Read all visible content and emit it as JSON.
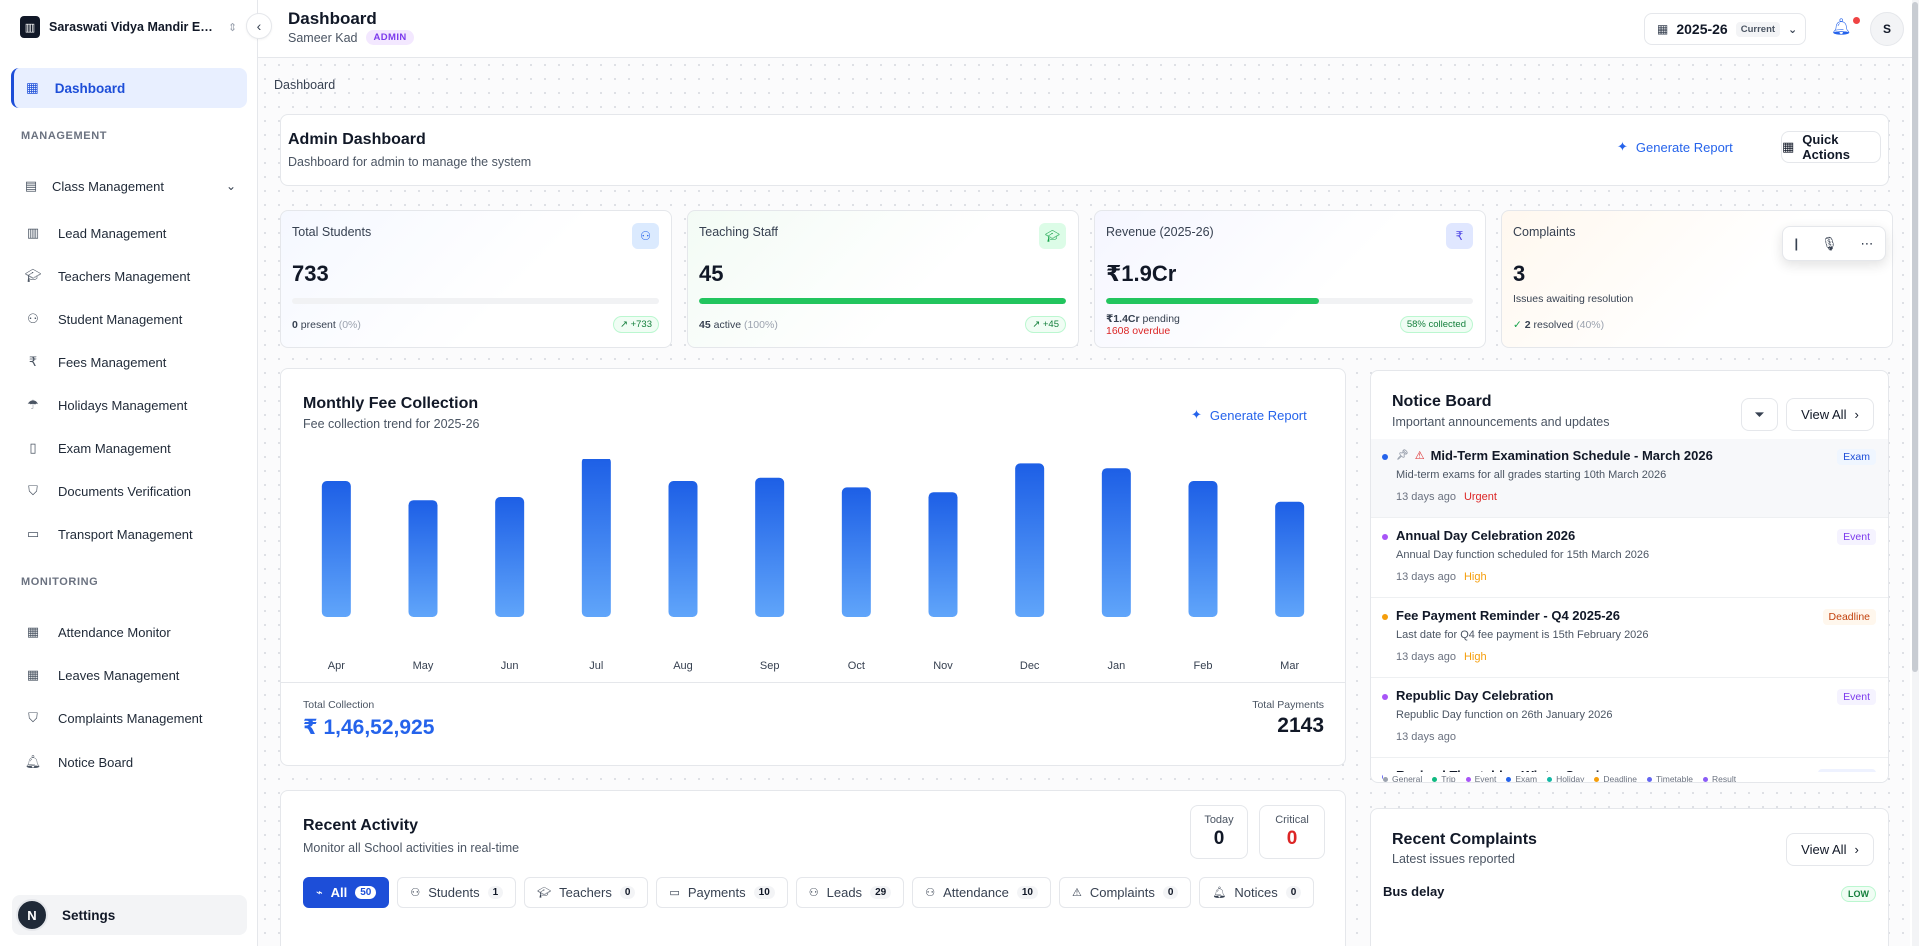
{
  "sidebar": {
    "school_name": "Saraswati Vidya Mandir Engl...",
    "dashboard_label": "Dashboard",
    "section_management": "MANAGEMENT",
    "section_monitoring": "MONITORING",
    "items": [
      {
        "label": "Class Management",
        "icon": "building-icon"
      },
      {
        "label": "Lead Management",
        "icon": "chart-icon"
      },
      {
        "label": "Teachers Management",
        "icon": "graduation-cap-icon"
      },
      {
        "label": "Student Management",
        "icon": "users-icon"
      },
      {
        "label": "Fees Management",
        "icon": "rupee-icon"
      },
      {
        "label": "Holidays Management",
        "icon": "umbrella-icon"
      },
      {
        "label": "Exam Management",
        "icon": "clipboard-icon"
      },
      {
        "label": "Documents Verification",
        "icon": "shield-icon"
      },
      {
        "label": "Transport Management",
        "icon": "bus-icon"
      },
      {
        "label": "Attendance Monitor",
        "icon": "calendar-icon"
      },
      {
        "label": "Leaves Management",
        "icon": "calendar-icon"
      },
      {
        "label": "Complaints Management",
        "icon": "shield-icon"
      },
      {
        "label": "Notice Board",
        "icon": "bell-icon"
      }
    ],
    "settings_label": "Settings",
    "settings_avatar": "N"
  },
  "header": {
    "title": "Dashboard",
    "user_name": "Sameer Kad",
    "role": "ADMIN",
    "academic_year": "2025-26",
    "year_tag": "Current",
    "avatar_initial": "S"
  },
  "breadcrumb": "Dashboard",
  "admin": {
    "title": "Admin Dashboard",
    "subtitle": "Dashboard for admin to manage the system",
    "generate_report": "Generate Report",
    "quick_actions": "Quick Actions"
  },
  "stats": {
    "students": {
      "label": "Total Students",
      "value": "733",
      "foot_bold": "0",
      "foot_text": "present",
      "foot_muted": "(0%)",
      "pill": "+733",
      "progress": 0
    },
    "staff": {
      "label": "Teaching Staff",
      "value": "45",
      "foot_bold": "45",
      "foot_text": "active",
      "foot_muted": "(100%)",
      "pill": "+45",
      "progress": 1.0
    },
    "revenue": {
      "label": "Revenue (2025-26)",
      "value": "₹1.9Cr",
      "pending_bold": "₹1.4Cr",
      "pending_text": "pending",
      "overdue": "1608 overdue",
      "pill": "58% collected",
      "progress": 0.58
    },
    "complaints": {
      "label": "Complaints",
      "value": "3",
      "desc": "Issues awaiting resolution",
      "resolved_bold": "2",
      "resolved_text": "resolved",
      "resolved_muted": "(40%)"
    }
  },
  "fee": {
    "title": "Monthly Fee Collection",
    "subtitle": "Fee collection trend for 2025-26",
    "generate_report": "Generate Report",
    "total_label": "Total Collection",
    "total_value": "₹ 1,46,52,925",
    "payments_label": "Total Payments",
    "payments_value": "2143"
  },
  "chart_data": {
    "type": "bar",
    "categories": [
      "Apr",
      "May",
      "Jun",
      "Jul",
      "Aug",
      "Sep",
      "Oct",
      "Nov",
      "Dec",
      "Jan",
      "Feb",
      "Mar"
    ],
    "values": [
      85,
      73,
      75,
      100,
      85,
      87,
      81,
      78,
      96,
      93,
      85,
      72
    ],
    "ylim": [
      0,
      100
    ],
    "grid": false,
    "colors": {
      "top": "#1d5fe6",
      "bottom": "#60a5fa"
    }
  },
  "notice": {
    "title": "Notice Board",
    "subtitle": "Important announcements and updates",
    "view_all": "View All",
    "items": [
      {
        "title": "Mid-Term Examination Schedule - March 2026",
        "desc": "Mid-term exams for all grades starting 10th March 2026",
        "time": "13 days ago",
        "priority": "Urgent",
        "priority_color": "#dc2626",
        "tag": "Exam",
        "tag_color": "#1d4ed8",
        "tag_bg": "#eff6ff",
        "dot": "#2563eb"
      },
      {
        "title": "Annual Day Celebration 2026",
        "desc": "Annual Day function scheduled for 15th March 2026",
        "time": "13 days ago",
        "priority": "High",
        "priority_color": "#f59e0b",
        "tag": "Event",
        "tag_color": "#7c3aed",
        "tag_bg": "#f5f3ff",
        "dot": "#a855f7"
      },
      {
        "title": "Fee Payment Reminder - Q4 2025-26",
        "desc": "Last date for Q4 fee payment is 15th February 2026",
        "time": "13 days ago",
        "priority": "High",
        "priority_color": "#f59e0b",
        "tag": "Deadline",
        "tag_color": "#c2410c",
        "tag_bg": "#fff7ed",
        "dot": "#f59e0b"
      },
      {
        "title": "Republic Day Celebration",
        "desc": "Republic Day function on 26th January 2026",
        "time": "13 days ago",
        "priority": "",
        "priority_color": "#6b7280",
        "tag": "Event",
        "tag_color": "#7c3aed",
        "tag_bg": "#f5f3ff",
        "dot": "#a855f7"
      },
      {
        "title": "Revised Timetable - Winter Session",
        "desc": "",
        "time": "",
        "priority": "",
        "priority_color": "#6b7280",
        "tag": "Timetable",
        "tag_color": "#4338ca",
        "tag_bg": "#eef2ff",
        "dot": "#6366f1"
      }
    ],
    "legend": [
      {
        "label": "General",
        "color": "#9ca3af"
      },
      {
        "label": "Trip",
        "color": "#10b981"
      },
      {
        "label": "Event",
        "color": "#a855f7"
      },
      {
        "label": "Exam",
        "color": "#2563eb"
      },
      {
        "label": "Holiday",
        "color": "#14b8a6"
      },
      {
        "label": "Deadline",
        "color": "#f59e0b"
      },
      {
        "label": "Timetable",
        "color": "#6366f1"
      },
      {
        "label": "Result",
        "color": "#8b5cf6"
      }
    ]
  },
  "activity": {
    "title": "Recent Activity",
    "subtitle": "Monitor all School activities in real-time",
    "today_label": "Today",
    "today_value": "0",
    "critical_label": "Critical",
    "critical_value": "0",
    "tabs": [
      {
        "label": "All",
        "count": "50"
      },
      {
        "label": "Students",
        "count": "1"
      },
      {
        "label": "Teachers",
        "count": "0"
      },
      {
        "label": "Payments",
        "count": "10"
      },
      {
        "label": "Leads",
        "count": "29"
      },
      {
        "label": "Attendance",
        "count": "10"
      },
      {
        "label": "Complaints",
        "count": "0"
      },
      {
        "label": "Notices",
        "count": "0"
      }
    ]
  },
  "complaints": {
    "title": "Recent Complaints",
    "subtitle": "Latest issues reported",
    "view_all": "View All",
    "first_item": "Bus delay",
    "first_level": "LOW"
  }
}
